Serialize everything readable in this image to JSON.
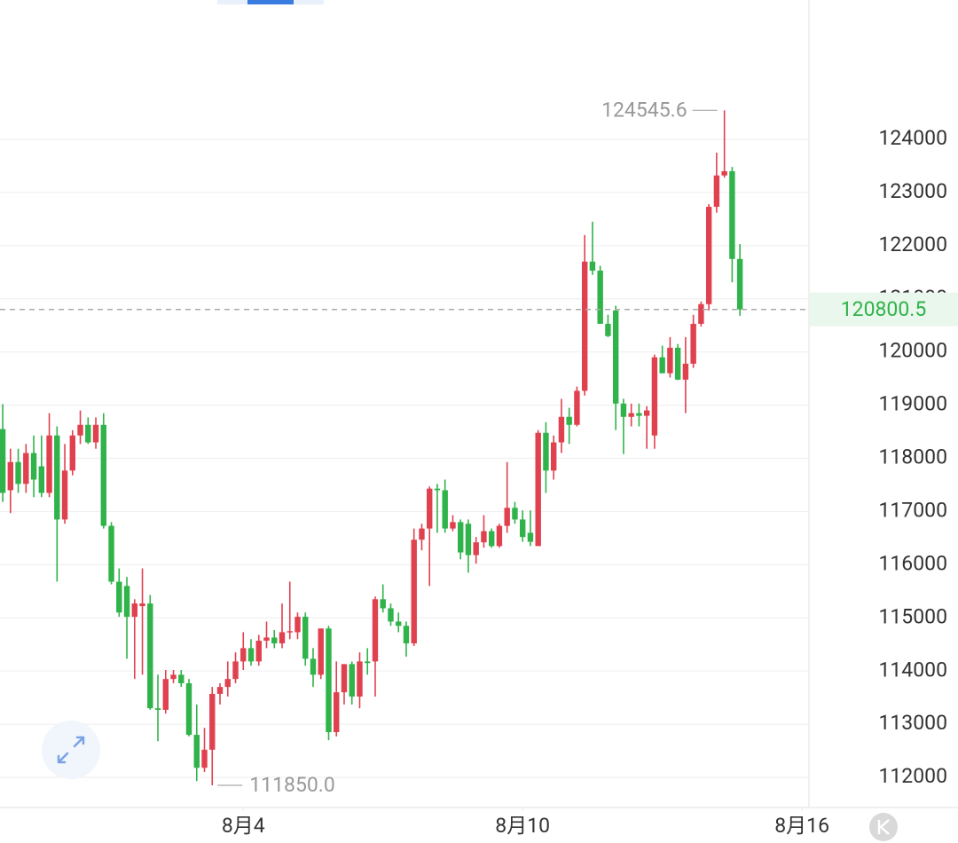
{
  "chart_data": {
    "type": "candlestick",
    "open": [
      118550,
      117400,
      117930,
      117520,
      118100,
      117850,
      117350,
      118430,
      116850,
      117770,
      118430,
      118630,
      118300,
      118630,
      116730,
      115680,
      115600,
      115020,
      115220,
      115270,
      113300,
      113270,
      113850,
      113930,
      113770,
      112800,
      112180,
      112520,
      113570,
      113700,
      113850,
      114180,
      114430,
      114180,
      114570,
      114630,
      114520,
      114730,
      114730,
      115020,
      114230,
      113930,
      114800,
      112850,
      113600,
      114130,
      113520,
      114180,
      114180,
      115350,
      115180,
      114930,
      114850,
      114520,
      116470,
      116680,
      117430,
      117400,
      116680,
      116800,
      116770,
      116180,
      116420,
      116630,
      116350,
      116730,
      117070,
      116850,
      116600,
      116350,
      118480,
      117770,
      118300,
      118780,
      118630,
      119270,
      121700,
      121530,
      120530,
      120780,
      119030,
      118780,
      118850,
      118800,
      118430,
      119900,
      119600,
      120080,
      119480,
      119780,
      120530,
      120900,
      122730,
      123320,
      123400,
      121750
    ],
    "high": [
      119020,
      118180,
      118180,
      118270,
      118430,
      118430,
      118850,
      118600,
      118270,
      118530,
      118900,
      118770,
      118770,
      118850,
      116800,
      115930,
      115770,
      115350,
      115930,
      115430,
      113930,
      114020,
      114020,
      114020,
      113850,
      113370,
      112930,
      113700,
      113770,
      114180,
      114350,
      114730,
      114600,
      114680,
      114930,
      114770,
      115270,
      115680,
      115100,
      115100,
      114430,
      114800,
      114850,
      114180,
      114130,
      114180,
      114350,
      114430,
      115400,
      115630,
      115270,
      115100,
      114930,
      116680,
      116770,
      117470,
      117520,
      117600,
      116930,
      116850,
      116850,
      116520,
      116930,
      116680,
      116770,
      117930,
      117180,
      117020,
      117020,
      118530,
      118680,
      118430,
      119120,
      118950,
      119350,
      122200,
      122450,
      121620,
      120700,
      120870,
      119120,
      119030,
      119030,
      118980,
      119950,
      120120,
      120280,
      120150,
      120280,
      120700,
      120950,
      122780,
      123750,
      124545.6,
      123480,
      122030
    ],
    "low": [
      117180,
      116970,
      117350,
      117350,
      117270,
      117270,
      117270,
      115680,
      116770,
      117680,
      118270,
      118270,
      118180,
      116680,
      115630,
      115020,
      114230,
      113850,
      113930,
      113270,
      112680,
      113200,
      113770,
      113700,
      112770,
      111930,
      112100,
      111850,
      113370,
      113520,
      113770,
      114020,
      114100,
      114100,
      114430,
      114430,
      114430,
      114600,
      114600,
      114100,
      113700,
      113850,
      112700,
      112770,
      113370,
      113370,
      113300,
      113930,
      113520,
      115100,
      114850,
      114730,
      114270,
      114470,
      116270,
      115600,
      116600,
      116600,
      116630,
      116100,
      115850,
      116020,
      116320,
      116320,
      116320,
      116600,
      116770,
      116430,
      116350,
      116350,
      117350,
      117600,
      118100,
      118270,
      118600,
      119180,
      121450,
      120530,
      120280,
      118530,
      118080,
      118600,
      118600,
      118180,
      118180,
      119600,
      119520,
      119470,
      118850,
      119700,
      120480,
      120780,
      122620,
      123280,
      121310,
      120680
    ],
    "close": [
      117350,
      117930,
      117520,
      118100,
      117600,
      117350,
      118430,
      116850,
      117770,
      118430,
      118630,
      118300,
      118630,
      116730,
      115680,
      115100,
      115020,
      115270,
      115270,
      113300,
      113270,
      113850,
      113930,
      113770,
      112800,
      112180,
      112520,
      113570,
      113700,
      113850,
      114180,
      114430,
      114180,
      114570,
      114630,
      114520,
      114730,
      114750,
      115020,
      114230,
      113930,
      114800,
      112850,
      113600,
      114130,
      113520,
      114180,
      114150,
      115350,
      115180,
      114930,
      114850,
      114520,
      116470,
      116680,
      117430,
      117400,
      116680,
      116800,
      116230,
      116180,
      116420,
      116630,
      116350,
      116730,
      117070,
      116850,
      116520,
      116430,
      118480,
      117770,
      118300,
      118780,
      118630,
      119270,
      121700,
      121530,
      120530,
      120300,
      119030,
      118780,
      118850,
      118800,
      118900,
      119900,
      119600,
      120080,
      119480,
      119780,
      120530,
      120900,
      122730,
      123320,
      123400,
      121750,
      120800.5
    ],
    "up_color": "#e0414f",
    "down_color": "#2fb34a",
    "ylim": [
      111433,
      126620
    ],
    "yticks": [
      112000,
      113000,
      114000,
      115000,
      116000,
      117000,
      118000,
      119000,
      120000,
      121000,
      122000,
      123000,
      124000
    ],
    "xlim": [
      -0.35,
      103.9
    ],
    "xticks": [
      {
        "value": 31,
        "label": "8月4"
      },
      {
        "value": 67,
        "label": "8月10"
      },
      {
        "value": 103,
        "label": "8月16"
      }
    ],
    "grid": true,
    "annotations": [
      {
        "value": 124545.6,
        "label": "124545.6",
        "index": 93
      },
      {
        "value": 111850,
        "label": "111850.0",
        "index": 27
      }
    ]
  }
}
